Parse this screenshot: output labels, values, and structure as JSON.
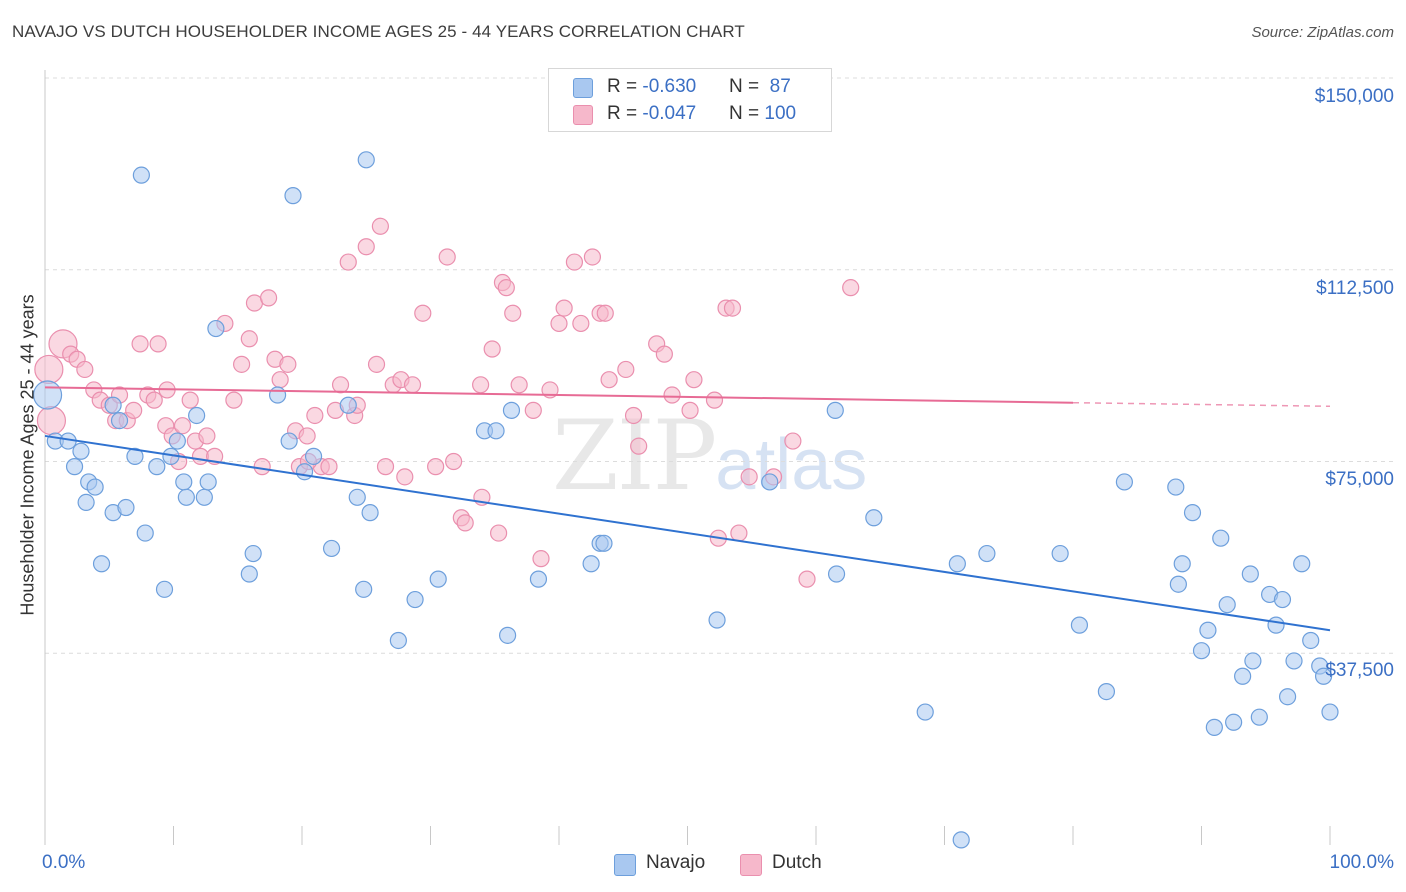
{
  "header": {
    "title": "NAVAJO VS DUTCH HOUSEHOLDER INCOME AGES 25 - 44 YEARS CORRELATION CHART",
    "source": "Source: ZipAtlas.com"
  },
  "watermark": {
    "zip": "ZIP",
    "atlas": "atlas"
  },
  "legend": {
    "rows": [
      {
        "r_label": "R = ",
        "r_value": "-0.630",
        "n_label": "N = ",
        "n_value": " 87",
        "color": "#a9c8f0"
      },
      {
        "r_label": "R = ",
        "r_value": "-0.047",
        "n_label": "N = ",
        "n_value": "100",
        "color": "#f6b8cb"
      }
    ]
  },
  "bottom_legend": {
    "series_1": "Navajo",
    "series_2": "Dutch"
  },
  "colors": {
    "navajo_fill": "#a9c8f0",
    "navajo_stroke": "#6d9fdc",
    "navajo_line": "#2f72d0",
    "dutch_fill": "#f6b8cb",
    "dutch_stroke": "#ea8fae",
    "dutch_line": "#e76b95",
    "axis_label": "#3b6fc4",
    "grid": "#dcdcdc"
  },
  "chart_data": {
    "type": "scatter",
    "title": "NAVAJO VS DUTCH HOUSEHOLDER INCOME AGES 25 - 44 YEARS CORRELATION CHART",
    "xlabel": "",
    "ylabel": "Householder Income Ages 25 - 44 years",
    "x_tick_labels": [
      "0.0%",
      "100.0%"
    ],
    "y_tick_labels": [
      "$150,000",
      "$112,500",
      "$75,000",
      "$37,500"
    ],
    "y_ticks": [
      150000,
      112500,
      75000,
      37500
    ],
    "xlim": [
      0,
      100
    ],
    "ylim": [
      0,
      155000
    ],
    "grid": true,
    "legend_position": "top-center",
    "series": [
      {
        "name": "Navajo",
        "R": -0.63,
        "N": 87,
        "trend": {
          "x0": 0,
          "y0": 80000,
          "x1": 100,
          "y1": 42000
        },
        "points": [
          [
            0.2,
            88000
          ],
          [
            0.8,
            79000
          ],
          [
            1.8,
            79000
          ],
          [
            2.3,
            74000
          ],
          [
            2.8,
            77000
          ],
          [
            3.2,
            67000
          ],
          [
            3.4,
            71000
          ],
          [
            3.9,
            70000
          ],
          [
            4.4,
            55000
          ],
          [
            5.3,
            86000
          ],
          [
            5.3,
            65000
          ],
          [
            5.8,
            83000
          ],
          [
            6.3,
            66000
          ],
          [
            7,
            76000
          ],
          [
            7.5,
            131000
          ],
          [
            7.8,
            61000
          ],
          [
            8.7,
            74000
          ],
          [
            9.3,
            50000
          ],
          [
            9.8,
            76000
          ],
          [
            10.3,
            79000
          ],
          [
            10.8,
            71000
          ],
          [
            11,
            68000
          ],
          [
            11.8,
            84000
          ],
          [
            12.4,
            68000
          ],
          [
            12.7,
            71000
          ],
          [
            13.3,
            101000
          ],
          [
            15.9,
            53000
          ],
          [
            16.2,
            57000
          ],
          [
            18.1,
            88000
          ],
          [
            19,
            79000
          ],
          [
            19.3,
            127000
          ],
          [
            20.2,
            73000
          ],
          [
            20.9,
            76000
          ],
          [
            22.3,
            58000
          ],
          [
            23.6,
            86000
          ],
          [
            24.3,
            68000
          ],
          [
            24.8,
            50000
          ],
          [
            25,
            134000
          ],
          [
            25.3,
            65000
          ],
          [
            27.5,
            40000
          ],
          [
            28.8,
            48000
          ],
          [
            30.6,
            52000
          ],
          [
            34.2,
            81000
          ],
          [
            35.1,
            81000
          ],
          [
            36,
            41000
          ],
          [
            36.3,
            85000
          ],
          [
            38.4,
            52000
          ],
          [
            42.5,
            55000
          ],
          [
            43.2,
            59000
          ],
          [
            43.5,
            59000
          ],
          [
            52.3,
            44000
          ],
          [
            56.4,
            71000
          ],
          [
            61.5,
            85000
          ],
          [
            61.6,
            53000
          ],
          [
            64.5,
            64000
          ],
          [
            68.5,
            26000
          ],
          [
            71,
            55000
          ],
          [
            73.3,
            57000
          ],
          [
            79,
            57000
          ],
          [
            80.5,
            43000
          ],
          [
            82.6,
            30000
          ],
          [
            84,
            71000
          ],
          [
            88,
            70000
          ],
          [
            88.2,
            51000
          ],
          [
            88.5,
            55000
          ],
          [
            89.3,
            65000
          ],
          [
            90,
            38000
          ],
          [
            90.5,
            42000
          ],
          [
            91,
            23000
          ],
          [
            91.5,
            60000
          ],
          [
            92,
            47000
          ],
          [
            92.5,
            24000
          ],
          [
            93.2,
            33000
          ],
          [
            93.8,
            53000
          ],
          [
            94,
            36000
          ],
          [
            94.5,
            25000
          ],
          [
            95.3,
            49000
          ],
          [
            95.8,
            43000
          ],
          [
            96.3,
            48000
          ],
          [
            96.7,
            29000
          ],
          [
            97.2,
            36000
          ],
          [
            97.8,
            55000
          ],
          [
            98.5,
            40000
          ],
          [
            99.2,
            35000
          ],
          [
            99.5,
            33000
          ],
          [
            100,
            26000
          ],
          [
            71.3,
            1000
          ]
        ]
      },
      {
        "name": "Dutch",
        "R": -0.047,
        "N": 100,
        "trend": {
          "x0": 0,
          "y0": 89500,
          "x1": 80,
          "y1": 86500,
          "dash_to_x": 100,
          "dash_to_y": 85800
        },
        "points": [
          [
            0.3,
            93000
          ],
          [
            0.5,
            83000
          ],
          [
            1.4,
            98000
          ],
          [
            2,
            96000
          ],
          [
            2.5,
            95000
          ],
          [
            3.1,
            93000
          ],
          [
            3.8,
            89000
          ],
          [
            4.3,
            87000
          ],
          [
            5,
            86000
          ],
          [
            5.5,
            83000
          ],
          [
            5.8,
            88000
          ],
          [
            6.4,
            83000
          ],
          [
            6.9,
            85000
          ],
          [
            7.4,
            98000
          ],
          [
            8,
            88000
          ],
          [
            8.5,
            87000
          ],
          [
            8.8,
            98000
          ],
          [
            9.4,
            82000
          ],
          [
            9.9,
            80000
          ],
          [
            10.4,
            75000
          ],
          [
            10.7,
            82000
          ],
          [
            11.3,
            87000
          ],
          [
            11.7,
            79000
          ],
          [
            12.1,
            76000
          ],
          [
            12.6,
            80000
          ],
          [
            13.2,
            76000
          ],
          [
            14,
            102000
          ],
          [
            14.7,
            87000
          ],
          [
            15.3,
            94000
          ],
          [
            15.9,
            99000
          ],
          [
            16.3,
            106000
          ],
          [
            16.9,
            74000
          ],
          [
            17.4,
            107000
          ],
          [
            17.9,
            95000
          ],
          [
            18.3,
            91000
          ],
          [
            18.9,
            94000
          ],
          [
            19.5,
            81000
          ],
          [
            19.8,
            74000
          ],
          [
            20.4,
            80000
          ],
          [
            21,
            84000
          ],
          [
            21.5,
            74000
          ],
          [
            22.1,
            74000
          ],
          [
            22.6,
            85000
          ],
          [
            23,
            90000
          ],
          [
            23.6,
            114000
          ],
          [
            24.1,
            84000
          ],
          [
            24.3,
            86000
          ],
          [
            25,
            117000
          ],
          [
            25.8,
            94000
          ],
          [
            26.1,
            121000
          ],
          [
            26.5,
            74000
          ],
          [
            27.1,
            90000
          ],
          [
            27.7,
            91000
          ],
          [
            28,
            72000
          ],
          [
            28.6,
            90000
          ],
          [
            29.4,
            104000
          ],
          [
            30.4,
            74000
          ],
          [
            31.3,
            115000
          ],
          [
            31.8,
            75000
          ],
          [
            32.4,
            64000
          ],
          [
            32.7,
            63000
          ],
          [
            34,
            68000
          ],
          [
            34.8,
            97000
          ],
          [
            35.3,
            61000
          ],
          [
            35.6,
            110000
          ],
          [
            35.9,
            109000
          ],
          [
            36.4,
            104000
          ],
          [
            36.9,
            90000
          ],
          [
            38,
            85000
          ],
          [
            38.6,
            56000
          ],
          [
            39.3,
            89000
          ],
          [
            40,
            102000
          ],
          [
            40.4,
            105000
          ],
          [
            41.2,
            114000
          ],
          [
            41.7,
            102000
          ],
          [
            42.6,
            115000
          ],
          [
            43.2,
            104000
          ],
          [
            43.6,
            104000
          ],
          [
            43.9,
            91000
          ],
          [
            45.2,
            93000
          ],
          [
            45.8,
            84000
          ],
          [
            46.2,
            78000
          ],
          [
            47.6,
            98000
          ],
          [
            48.2,
            96000
          ],
          [
            48.8,
            88000
          ],
          [
            50.2,
            85000
          ],
          [
            50.5,
            91000
          ],
          [
            52.1,
            87000
          ],
          [
            52.4,
            60000
          ],
          [
            53,
            105000
          ],
          [
            53.5,
            105000
          ],
          [
            54,
            61000
          ],
          [
            54.8,
            72000
          ],
          [
            56.7,
            72000
          ],
          [
            58.2,
            79000
          ],
          [
            59.3,
            52000
          ],
          [
            62.7,
            109000
          ],
          [
            20.5,
            75000
          ],
          [
            9.5,
            89000
          ],
          [
            33.9,
            90000
          ]
        ]
      }
    ]
  }
}
